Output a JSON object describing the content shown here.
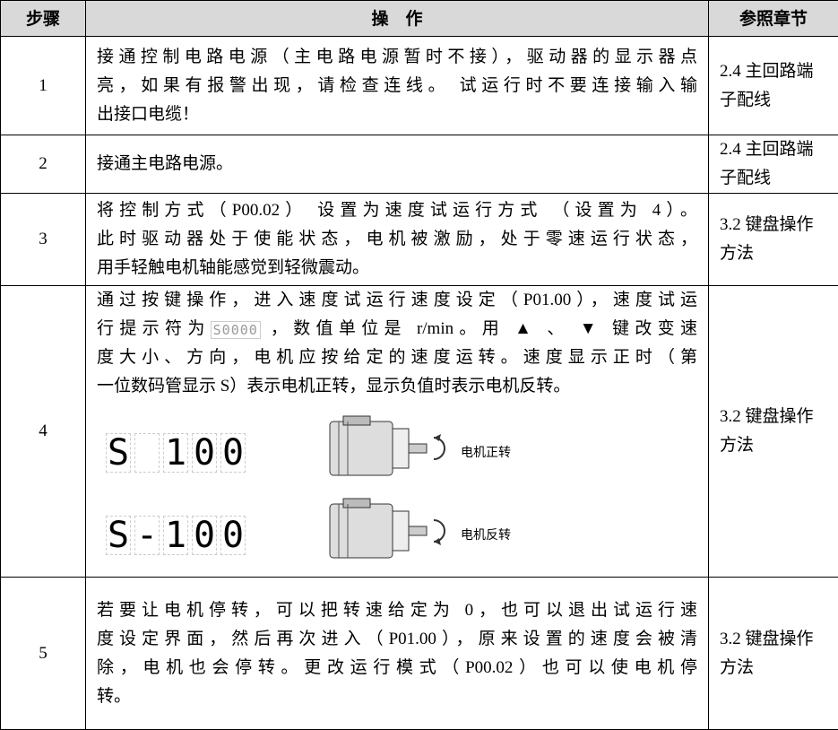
{
  "table": {
    "header": [
      "步骤",
      "操　作",
      "参照章节"
    ],
    "rows": [
      {
        "step": "1",
        "operation": {
          "lines": [
            "接通控制电路电源（主电路电源暂时不接），驱动器的显示器点",
            "亮，如果有报警出现，请检查连线。 试运行时不要连接输入输",
            "出接口电缆！"
          ]
        },
        "reference": [
          "2.4 主回路端",
          "子配线"
        ]
      },
      {
        "step": "2",
        "operation": {
          "lines": [
            "接通主电路电源。"
          ]
        },
        "reference": [
          "2.4 主回路端",
          "子配线"
        ]
      },
      {
        "step": "3",
        "operation": {
          "lines": [
            "将控制方式（P00.02） 设置为速度试运行方式 （设置为 4）。",
            "此时驱动器处于使能状态，电机被激励，处于零速运行状态，",
            "用手轻触电机轴能感觉到轻微震动。"
          ]
        },
        "reference": [
          "3.2 键盘操作",
          "方法"
        ]
      },
      {
        "step": "4",
        "operation": {
          "lines": [
            "通过按键操作，进入速度试运行速度设定（P01.00），速度试运",
            [
              "行提示符为",
              "S0000",
              " ，数值单位是 r/min。用 ▲ 、 ▼ 键改变速"
            ],
            "度大小、方向，电机应按给定的速度运转。速度显示正时（第",
            "一位数码管显示 S）表示电机正转，显示负值时表示电机反转。"
          ],
          "figures": [
            {
              "display": "S 100",
              "caption": "电机正转"
            },
            {
              "display": "S-100",
              "caption": "电机反转"
            }
          ]
        },
        "reference": [
          "3.2 键盘操作",
          "方法"
        ]
      },
      {
        "step": "5",
        "operation": {
          "lines": [
            "若要让电机停转，可以把转速给定为 0，也可以退出试运行速",
            "度设定界面，然后再次进入（P01.00），原来设置的速度会被清",
            "除，电机也会停转。更改运行模式（P00.02）也可以使电机停",
            "转。"
          ]
        },
        "reference": [
          "3.2 键盘操作",
          "方法"
        ]
      }
    ]
  }
}
